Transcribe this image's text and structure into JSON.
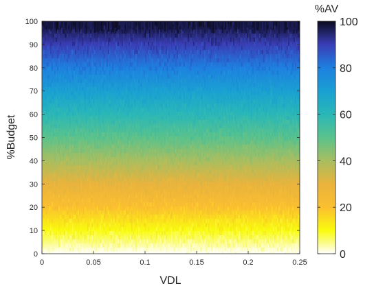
{
  "chart_data": {
    "type": "heatmap",
    "title": "",
    "xlabel": "VDL",
    "ylabel": "%Budget",
    "xlim": [
      0,
      0.25
    ],
    "ylim": [
      0,
      100
    ],
    "xticks": [
      "0",
      "0.05",
      "0.1",
      "0.15",
      "0.2",
      "0.25"
    ],
    "yticks": [
      "0",
      "10",
      "20",
      "30",
      "40",
      "50",
      "60",
      "70",
      "80",
      "90",
      "100"
    ],
    "colorbar": {
      "label": "%AV",
      "range": [
        0,
        100
      ],
      "ticks": [
        "0",
        "20",
        "40",
        "60",
        "80",
        "100"
      ],
      "colormap": [
        {
          "value": 0,
          "color": "#ffffff"
        },
        {
          "value": 5,
          "color": "#fbfb80"
        },
        {
          "value": 10,
          "color": "#f9fb0e"
        },
        {
          "value": 20,
          "color": "#fbbf30"
        },
        {
          "value": 30,
          "color": "#e9b33d"
        },
        {
          "value": 40,
          "color": "#a8be60"
        },
        {
          "value": 50,
          "color": "#5ac28c"
        },
        {
          "value": 60,
          "color": "#2ab7b8"
        },
        {
          "value": 70,
          "color": "#1aa0d2"
        },
        {
          "value": 80,
          "color": "#1e7fe0"
        },
        {
          "value": 90,
          "color": "#3a3eb6"
        },
        {
          "value": 100,
          "color": "#0b0b1e"
        }
      ]
    },
    "description_values": {
      "pattern": "%AV approximately equals %Budget at every VDL, with small vertical streak noise",
      "samples": [
        {
          "budget": 0,
          "av": 0
        },
        {
          "budget": 10,
          "av": 10
        },
        {
          "budget": 20,
          "av": 22
        },
        {
          "budget": 30,
          "av": 33
        },
        {
          "budget": 40,
          "av": 42
        },
        {
          "budget": 50,
          "av": 52
        },
        {
          "budget": 60,
          "av": 62
        },
        {
          "budget": 70,
          "av": 72
        },
        {
          "budget": 80,
          "av": 82
        },
        {
          "budget": 90,
          "av": 91
        },
        {
          "budget": 100,
          "av": 100
        }
      ]
    }
  }
}
